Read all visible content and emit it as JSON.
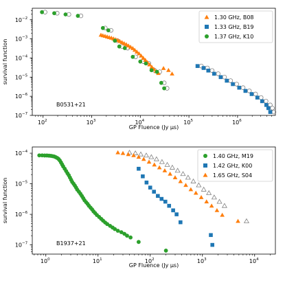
{
  "chart_data": [
    {
      "type": "scatter",
      "xscale": "log",
      "yscale": "log",
      "xlim": [
        60,
        6000000
      ],
      "ylim": [
        1e-07,
        0.04
      ],
      "xlabel": "GP Fluence (Jy μs)",
      "ylabel": "survival function",
      "xticks": [
        {
          "value": 100,
          "label": "10",
          "exp": "2"
        },
        {
          "value": 1000,
          "label": "10",
          "exp": "3"
        },
        {
          "value": 10000,
          "label": "10",
          "exp": "4"
        },
        {
          "value": 100000,
          "label": "10",
          "exp": "5"
        },
        {
          "value": 1000000,
          "label": "10",
          "exp": "6"
        }
      ],
      "yticks": [
        {
          "value": 1e-07,
          "label": "10",
          "exp": "−7"
        },
        {
          "value": 1e-06,
          "label": "10",
          "exp": "−6"
        },
        {
          "value": 1e-05,
          "label": "10",
          "exp": "−5"
        },
        {
          "value": 0.0001,
          "label": "10",
          "exp": "−4"
        },
        {
          "value": 0.001,
          "label": "10",
          "exp": "−3"
        },
        {
          "value": 0.01,
          "label": "10",
          "exp": "−2"
        }
      ],
      "legend": "top-right",
      "annotation": "B0531+21",
      "series": [
        {
          "name": "1.30 GHz, B08",
          "marker": "triangle",
          "color": "#ff7f0e",
          "points": [
            [
              1550,
              0.0016
            ],
            [
              1700,
              0.0015
            ],
            [
              1880,
              0.0014
            ],
            [
              2080,
              0.0013
            ],
            [
              2300,
              0.0012
            ],
            [
              2550,
              0.00112
            ],
            [
              2820,
              0.00102
            ],
            [
              3120,
              0.00093
            ],
            [
              3450,
              0.00085
            ],
            [
              3800,
              0.00075
            ],
            [
              4200,
              0.00066
            ],
            [
              4650,
              0.00058
            ],
            [
              5150,
              0.00051
            ],
            [
              5700,
              0.00044
            ],
            [
              6300,
              0.00038
            ],
            [
              7000,
              0.00032
            ],
            [
              7700,
              0.00026
            ],
            [
              8500,
              0.00021
            ],
            [
              9400,
              0.00017
            ],
            [
              10400,
              0.00013
            ],
            [
              11500,
              0.0001
            ],
            [
              12700,
              7.8e-05
            ],
            [
              14000,
              5.9e-05
            ],
            [
              15500,
              4.5e-05
            ],
            [
              17200,
              3.4e-05
            ],
            [
              19000,
              2.6e-05
            ],
            [
              21000,
              2e-05
            ],
            [
              23500,
              1.6e-05
            ],
            [
              30000,
              2.9e-05
            ],
            [
              38000,
              2.3e-05
            ],
            [
              45000,
              1.5e-05
            ]
          ]
        },
        {
          "name": "1.33 GHz, B19",
          "marker": "square",
          "color": "#1f77b4",
          "points": [
            [
              150000,
              3.8e-05
            ],
            [
              200000,
              3e-05
            ],
            [
              250000,
              2.2e-05
            ],
            [
              330000,
              1.5e-05
            ],
            [
              450000,
              1e-05
            ],
            [
              600000,
              6.5e-06
            ],
            [
              800000,
              4.3e-06
            ],
            [
              1080000,
              2.8e-06
            ],
            [
              1450000,
              1.9e-06
            ],
            [
              1950000,
              1.3e-06
            ],
            [
              2550000,
              8.5e-07
            ],
            [
              3200000,
              5.5e-07
            ],
            [
              3900000,
              3.5e-07
            ],
            [
              4300000,
              2.4e-07
            ],
            [
              4700000,
              1.5e-07
            ]
          ]
        },
        {
          "name": "1.37 GHz, K10",
          "marker": "circle",
          "color": "#2ca02c",
          "points": [
            [
              95,
              0.025
            ],
            [
              170,
              0.022
            ],
            [
              290,
              0.019
            ],
            [
              520,
              0.016
            ],
            [
              1700,
              0.0037
            ],
            [
              2200,
              0.0028
            ],
            [
              3000,
              0.0008
            ],
            [
              3700,
              0.0004
            ],
            [
              4800,
              0.00033
            ],
            [
              7000,
              0.000115
            ],
            [
              10000,
              6.5e-05
            ],
            [
              13000,
              5.2e-05
            ],
            [
              17000,
              2.3e-05
            ],
            [
              22000,
              1.9e-05
            ],
            [
              27000,
              5e-06
            ],
            [
              31000,
              2.6e-06
            ]
          ]
        },
        {
          "name": "",
          "marker": "circle-open",
          "color": "#808080",
          "points": [
            [
              110,
              0.025
            ],
            [
              195,
              0.022
            ],
            [
              340,
              0.019
            ],
            [
              600,
              0.016
            ],
            [
              1900,
              0.0037
            ],
            [
              2500,
              0.0028
            ],
            [
              3400,
              0.0008
            ],
            [
              4200,
              0.0004
            ],
            [
              5500,
              0.00033
            ],
            [
              8000,
              0.000115
            ],
            [
              11500,
              6.5e-05
            ],
            [
              15000,
              5.2e-05
            ],
            [
              19500,
              2.3e-05
            ],
            [
              25000,
              1.9e-05
            ],
            [
              31000,
              5e-06
            ],
            [
              35500,
              2.6e-06
            ],
            [
              180000,
              3.8e-05
            ],
            [
              240000,
              3e-05
            ],
            [
              300000,
              2.2e-05
            ],
            [
              400000,
              1.5e-05
            ],
            [
              540000,
              1e-05
            ],
            [
              720000,
              6.5e-06
            ],
            [
              960000,
              4.3e-06
            ],
            [
              1300000,
              2.8e-06
            ],
            [
              1750000,
              1.9e-06
            ],
            [
              2350000,
              1.3e-06
            ],
            [
              3050000,
              8.5e-07
            ],
            [
              3850000,
              5.5e-07
            ],
            [
              4700000,
              3.5e-07
            ],
            [
              5200000,
              2.4e-07
            ],
            [
              5600000,
              1.5e-07
            ]
          ]
        }
      ]
    },
    {
      "type": "scatter",
      "xscale": "log",
      "yscale": "log",
      "xlim": [
        0.55,
        25000
      ],
      "ylim": [
        5e-08,
        0.00016
      ],
      "xlabel": "GP Fluence (Jy μs)",
      "ylabel": "survival function",
      "xticks": [
        {
          "value": 1,
          "label": "10",
          "exp": "0"
        },
        {
          "value": 10,
          "label": "10",
          "exp": "1"
        },
        {
          "value": 100,
          "label": "10",
          "exp": "2"
        },
        {
          "value": 1000,
          "label": "10",
          "exp": "3"
        },
        {
          "value": 10000,
          "label": "10",
          "exp": "4"
        }
      ],
      "yticks": [
        {
          "value": 1e-07,
          "label": "10",
          "exp": "−7"
        },
        {
          "value": 1e-06,
          "label": "10",
          "exp": "−6"
        },
        {
          "value": 1e-05,
          "label": "10",
          "exp": "−5"
        },
        {
          "value": 0.0001,
          "label": "10",
          "exp": "−4"
        }
      ],
      "legend": "top-right",
      "annotation": "B1937+21",
      "series": [
        {
          "name": "1.40 GHz, M19",
          "marker": "circle",
          "color": "#2ca02c",
          "points": [
            [
              0.75,
              8.5e-05
            ],
            [
              0.85,
              8.5e-05
            ],
            [
              0.95,
              8.4e-05
            ],
            [
              1.05,
              8.4e-05
            ],
            [
              1.15,
              8.3e-05
            ],
            [
              1.25,
              8.2e-05
            ],
            [
              1.35,
              8e-05
            ],
            [
              1.45,
              7.8e-05
            ],
            [
              1.55,
              7.4e-05
            ],
            [
              1.65,
              7e-05
            ],
            [
              1.75,
              6.5e-05
            ],
            [
              1.85,
              5.8e-05
            ],
            [
              1.95,
              5e-05
            ],
            [
              2.05,
              4.3e-05
            ],
            [
              2.15,
              3.7e-05
            ],
            [
              2.3,
              3.1e-05
            ],
            [
              2.45,
              2.6e-05
            ],
            [
              2.6,
              2.2e-05
            ],
            [
              2.75,
              1.9e-05
            ],
            [
              2.9,
              1.6e-05
            ],
            [
              3.05,
              1.35e-05
            ],
            [
              3.2,
              1.15e-05
            ],
            [
              3.4,
              1e-05
            ],
            [
              3.6,
              8.7e-06
            ],
            [
              3.8,
              7.5e-06
            ],
            [
              4.0,
              6.4e-06
            ],
            [
              4.3,
              5.5e-06
            ],
            [
              4.6,
              4.7e-06
            ],
            [
              4.9,
              4e-06
            ],
            [
              5.2,
              3.4e-06
            ],
            [
              5.5,
              2.9e-06
            ],
            [
              5.9,
              2.5e-06
            ],
            [
              6.3,
              2.2e-06
            ],
            [
              6.7,
              1.9e-06
            ],
            [
              7.2,
              1.65e-06
            ],
            [
              7.7,
              1.45e-06
            ],
            [
              8.2,
              1.25e-06
            ],
            [
              8.8,
              1.1e-06
            ],
            [
              9.5,
              9.5e-07
            ],
            [
              10.5,
              8.2e-07
            ],
            [
              11.5,
              7.1e-07
            ],
            [
              12.5,
              6.2e-07
            ],
            [
              13.7,
              5.4e-07
            ],
            [
              15,
              4.8e-07
            ],
            [
              17,
              4.2e-07
            ],
            [
              19,
              3.7e-07
            ],
            [
              21,
              3.3e-07
            ],
            [
              24,
              2.9e-07
            ],
            [
              28,
              2.6e-07
            ],
            [
              32,
              2.3e-07
            ],
            [
              36,
              2e-07
            ],
            [
              42,
              1.75e-07
            ],
            [
              60,
              1.25e-07
            ],
            [
              200,
              6.5e-08
            ]
          ]
        },
        {
          "name": "1.42 GHz, K00",
          "marker": "square",
          "color": "#1f77b4",
          "points": [
            [
              60,
              3.1e-05
            ],
            [
              72,
              1.75e-05
            ],
            [
              85,
              1.1e-05
            ],
            [
              100,
              7.5e-06
            ],
            [
              118,
              5.5e-06
            ],
            [
              140,
              4e-06
            ],
            [
              165,
              3.2e-06
            ],
            [
              195,
              2.6e-06
            ],
            [
              230,
              1.9e-06
            ],
            [
              275,
              1.35e-06
            ],
            [
              320,
              1e-06
            ],
            [
              380,
              5.5e-07
            ],
            [
              1450,
              2.1e-07
            ],
            [
              1550,
              1e-07
            ]
          ]
        },
        {
          "name": "1.65 GHz, S04",
          "marker": "triangle",
          "color": "#ff7f0e",
          "points": [
            [
              24,
              0.000105
            ],
            [
              30,
              0.0001
            ],
            [
              38,
              9.2e-05
            ],
            [
              48,
              8.5e-05
            ],
            [
              60,
              7.5e-05
            ],
            [
              75,
              6.4e-05
            ],
            [
              95,
              5.2e-05
            ],
            [
              120,
              4.2e-05
            ],
            [
              150,
              3.4e-05
            ],
            [
              190,
              2.7e-05
            ],
            [
              240,
              2.1e-05
            ],
            [
              300,
              1.6e-05
            ],
            [
              380,
              1.2e-05
            ],
            [
              480,
              9e-06
            ],
            [
              600,
              6.5e-06
            ],
            [
              750,
              5e-06
            ],
            [
              950,
              3.6e-06
            ],
            [
              1200,
              2.6e-06
            ],
            [
              1500,
              1.9e-06
            ],
            [
              1900,
              1.35e-06
            ],
            [
              2400,
              9.5e-07
            ],
            [
              4800,
              6e-07
            ]
          ]
        },
        {
          "name": "",
          "marker": "triangle-open",
          "color": "#808080",
          "points": [
            [
              40,
              0.000105
            ],
            [
              52,
              0.0001
            ],
            [
              66,
              9.2e-05
            ],
            [
              84,
              8.5e-05
            ],
            [
              105,
              7.5e-05
            ],
            [
              132,
              6.4e-05
            ],
            [
              168,
              5.2e-05
            ],
            [
              212,
              4.2e-05
            ],
            [
              265,
              3.4e-05
            ],
            [
              335,
              2.7e-05
            ],
            [
              425,
              2.1e-05
            ],
            [
              530,
              1.6e-05
            ],
            [
              670,
              1.2e-05
            ],
            [
              850,
              9e-06
            ],
            [
              1060,
              6.5e-06
            ],
            [
              1330,
              5e-06
            ],
            [
              1680,
              3.6e-06
            ],
            [
              2120,
              2.6e-06
            ],
            [
              2650,
              1.9e-06
            ],
            [
              7000,
              6e-07
            ]
          ]
        }
      ]
    }
  ]
}
